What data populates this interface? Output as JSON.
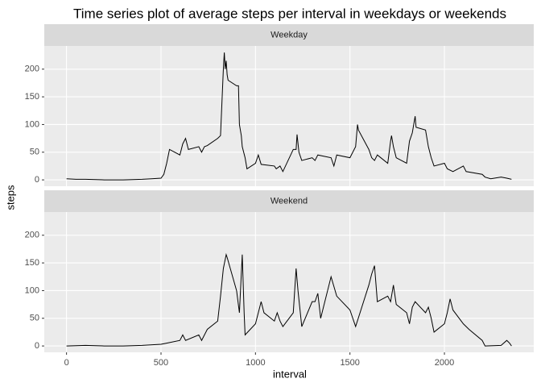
{
  "chart_data": {
    "type": "line",
    "title": "Time series plot of average steps per interval in weekdays or weekends",
    "x_label": "interval",
    "y_label": "steps",
    "color": "#000000",
    "grid": true,
    "xlim": [
      -117.75,
      2472.75
    ],
    "xticks": [
      0,
      500,
      1000,
      1500,
      2000
    ],
    "ylim": [
      -11.5,
      241.9
    ],
    "yticks": [
      0,
      50,
      100,
      150,
      200
    ],
    "facets": [
      {
        "name": "Weekday",
        "x": [
          0,
          50,
          100,
          200,
          300,
          400,
          450,
          500,
          515,
          530,
          545,
          600,
          615,
          630,
          645,
          700,
          715,
          730,
          745,
          800,
          815,
          830,
          835,
          840,
          845,
          850,
          855,
          900,
          910,
          915,
          925,
          930,
          945,
          955,
          1000,
          1015,
          1030,
          1100,
          1110,
          1130,
          1145,
          1200,
          1215,
          1220,
          1230,
          1245,
          1300,
          1315,
          1330,
          1400,
          1415,
          1430,
          1500,
          1530,
          1540,
          1545,
          1600,
          1615,
          1630,
          1645,
          1700,
          1715,
          1720,
          1730,
          1745,
          1800,
          1815,
          1830,
          1845,
          1850,
          1900,
          1915,
          1930,
          1945,
          2000,
          2015,
          2045,
          2100,
          2115,
          2200,
          2215,
          2245,
          2300,
          2330,
          2355
        ],
        "values": [
          2,
          1,
          1,
          0,
          0,
          1,
          2,
          3,
          10,
          30,
          55,
          45,
          65,
          75,
          55,
          60,
          50,
          60,
          62,
          75,
          80,
          200,
          230,
          200,
          215,
          190,
          180,
          170,
          170,
          100,
          80,
          60,
          40,
          20,
          30,
          45,
          28,
          25,
          20,
          25,
          15,
          55,
          55,
          82,
          50,
          35,
          40,
          35,
          45,
          40,
          25,
          45,
          40,
          60,
          100,
          90,
          55,
          40,
          35,
          45,
          30,
          70,
          80,
          60,
          40,
          30,
          70,
          85,
          115,
          95,
          90,
          60,
          40,
          25,
          30,
          20,
          15,
          25,
          15,
          10,
          5,
          2,
          5,
          3,
          1
        ]
      },
      {
        "name": "Weekend",
        "x": [
          0,
          100,
          200,
          300,
          400,
          500,
          530,
          600,
          615,
          630,
          700,
          715,
          745,
          800,
          815,
          830,
          845,
          850,
          900,
          915,
          930,
          940,
          945,
          1000,
          1015,
          1030,
          1045,
          1100,
          1115,
          1130,
          1145,
          1200,
          1215,
          1225,
          1245,
          1300,
          1315,
          1330,
          1345,
          1400,
          1430,
          1500,
          1530,
          1600,
          1615,
          1630,
          1645,
          1700,
          1715,
          1730,
          1745,
          1800,
          1815,
          1830,
          1845,
          1900,
          1915,
          1930,
          1945,
          2000,
          2015,
          2030,
          2045,
          2100,
          2130,
          2200,
          2215,
          2300,
          2330,
          2345,
          2355
        ],
        "values": [
          0,
          1,
          0,
          0,
          1,
          3,
          5,
          10,
          20,
          10,
          20,
          10,
          30,
          45,
          90,
          140,
          165,
          160,
          100,
          60,
          165,
          60,
          20,
          40,
          60,
          80,
          60,
          45,
          60,
          45,
          35,
          60,
          140,
          100,
          35,
          80,
          80,
          95,
          50,
          125,
          90,
          65,
          35,
          110,
          130,
          145,
          80,
          90,
          80,
          110,
          75,
          60,
          40,
          70,
          80,
          60,
          70,
          50,
          25,
          40,
          60,
          85,
          65,
          40,
          30,
          10,
          0,
          1,
          10,
          5,
          0
        ]
      }
    ]
  }
}
